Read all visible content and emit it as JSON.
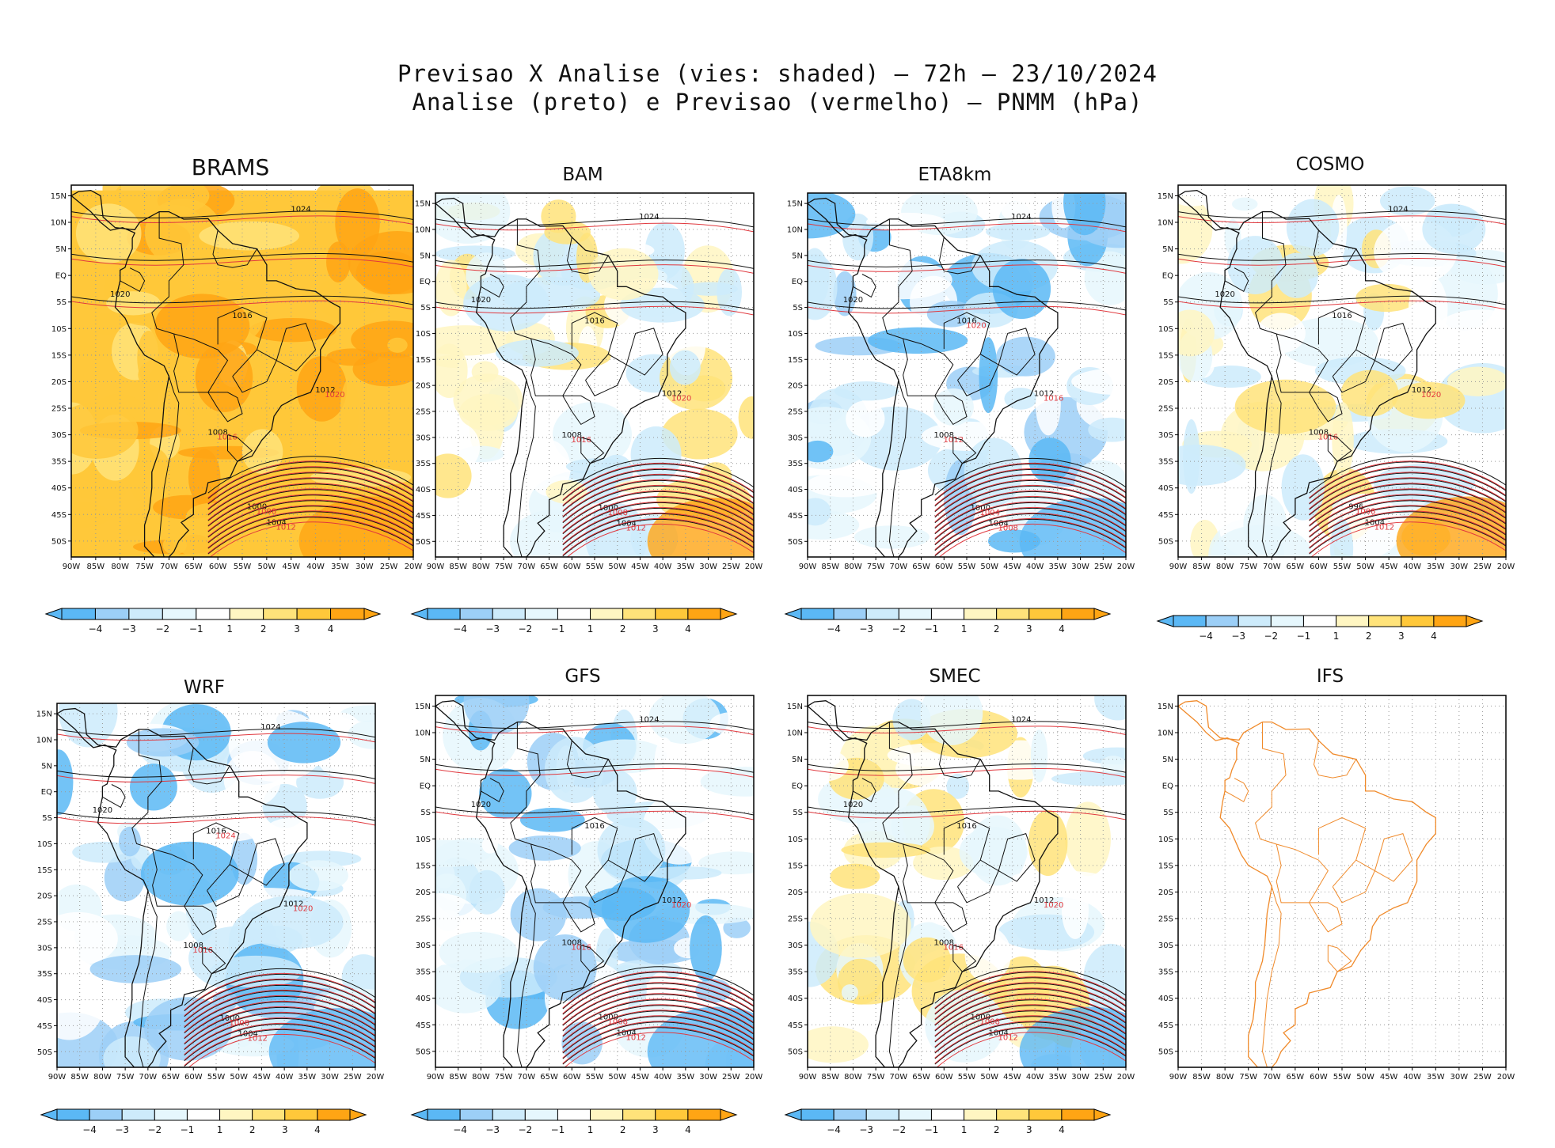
{
  "figure": {
    "title_line1": "Previsao X Analise (vies: shaded) – 72h – 23/10/2024",
    "title_line2": "Analise (preto) e Previsao (vermelho) – PNMM (hPa)"
  },
  "colors": {
    "neg4": "#5BB8F5",
    "neg3": "#9CCFF7",
    "neg2": "#CDEBFB",
    "neg1": "#E6F7FD",
    "zero": "#FFFFFF",
    "pos1": "#FFF6C2",
    "pos2": "#FFE37A",
    "pos3": "#FFC83A",
    "pos4": "#FFA514",
    "analysis": "#111111",
    "forecast": "#E0383E",
    "ifs_coast": "#F08A2A"
  },
  "axes": {
    "lat_ticks": [
      "15N",
      "10N",
      "5N",
      "EQ",
      "5S",
      "10S",
      "15S",
      "20S",
      "25S",
      "30S",
      "35S",
      "40S",
      "45S",
      "50S"
    ],
    "lon_ticks": [
      "90W",
      "85W",
      "80W",
      "75W",
      "70W",
      "65W",
      "60W",
      "55W",
      "50W",
      "45W",
      "40W",
      "35W",
      "30W",
      "25W",
      "20W"
    ]
  },
  "colorbar": {
    "labels": [
      "−4",
      "−3",
      "−2",
      "−1",
      "1",
      "2",
      "3",
      "4"
    ]
  },
  "chart_data": [
    {
      "type": "heatmap",
      "model": "BRAMS",
      "dominant_bias": "positive",
      "title": "BRAMS",
      "lon_range": [
        -90,
        -20
      ],
      "lat_range": [
        -53,
        17
      ],
      "analysis_contours": [
        "1000",
        "1004",
        "1008",
        "1012",
        "1016",
        "1020",
        "1024"
      ],
      "forecast_contours": [
        "1008",
        "1012",
        "1016",
        "1020"
      ],
      "colorbar_levels": [
        -4,
        -3,
        -2,
        -1,
        1,
        2,
        3,
        4
      ]
    },
    {
      "type": "heatmap",
      "model": "BAM",
      "dominant_bias": "mixed",
      "title": "BAM",
      "lon_range": [
        -90,
        -20
      ],
      "lat_range": [
        -53,
        17
      ],
      "analysis_contours": [
        "1000",
        "1004",
        "1008",
        "1012",
        "1016",
        "1020",
        "1024"
      ],
      "forecast_contours": [
        "1008",
        "1012",
        "1016",
        "1020"
      ],
      "colorbar_levels": [
        -4,
        -3,
        -2,
        -1,
        1,
        2,
        3,
        4
      ]
    },
    {
      "type": "heatmap",
      "model": "ETA8km",
      "dominant_bias": "negative",
      "title": "ETA8km",
      "lon_range": [
        -90,
        -20
      ],
      "lat_range": [
        -53,
        17
      ],
      "analysis_contours": [
        "1000",
        "1004",
        "1008",
        "1012",
        "1016",
        "1020",
        "1024"
      ],
      "forecast_contours": [
        "1004",
        "1008",
        "1012",
        "1016",
        "1020"
      ],
      "colorbar_levels": [
        -4,
        -3,
        -2,
        -1,
        1,
        2,
        3,
        4
      ]
    },
    {
      "type": "heatmap",
      "model": "COSMO",
      "dominant_bias": "mixed",
      "title": "COSMO",
      "lon_range": [
        -90,
        -20
      ],
      "lat_range": [
        -53,
        17
      ],
      "analysis_contours": [
        "996",
        "1004",
        "1008",
        "1012",
        "1016",
        "1020",
        "1024"
      ],
      "forecast_contours": [
        "1008",
        "1012",
        "1016",
        "1020"
      ],
      "colorbar_levels": [
        -4,
        -3,
        -2,
        -1,
        1,
        2,
        3,
        4
      ]
    },
    {
      "type": "heatmap",
      "model": "WRF",
      "dominant_bias": "negative",
      "title": "WRF",
      "lon_range": [
        -90,
        -20
      ],
      "lat_range": [
        -53,
        17
      ],
      "analysis_contours": [
        "1000",
        "1004",
        "1008",
        "1012",
        "1016",
        "1020",
        "1024"
      ],
      "forecast_contours": [
        "1008",
        "1012",
        "1016",
        "1020",
        "1024"
      ],
      "colorbar_levels": [
        -4,
        -3,
        -2,
        -1,
        1,
        2,
        3,
        4
      ]
    },
    {
      "type": "heatmap",
      "model": "GFS",
      "dominant_bias": "negative",
      "title": "GFS",
      "lon_range": [
        -90,
        -20
      ],
      "lat_range": [
        -53,
        17
      ],
      "analysis_contours": [
        "1000",
        "1004",
        "1008",
        "1012",
        "1016",
        "1020",
        "1024"
      ],
      "forecast_contours": [
        "1008",
        "1012",
        "1016",
        "1020"
      ],
      "colorbar_levels": [
        -4,
        -3,
        -2,
        -1,
        1,
        2,
        3,
        4
      ]
    },
    {
      "type": "heatmap",
      "model": "SMEC",
      "dominant_bias": "mixed",
      "title": "SMEC",
      "lon_range": [
        -90,
        -20
      ],
      "lat_range": [
        -53,
        17
      ],
      "analysis_contours": [
        "1000",
        "1004",
        "1008",
        "1012",
        "1016",
        "1020",
        "1024"
      ],
      "forecast_contours": [
        "1008",
        "1012",
        "1016",
        "1020"
      ],
      "colorbar_levels": [
        -4,
        -3,
        -2,
        -1,
        1,
        2,
        3,
        4
      ]
    },
    {
      "type": "heatmap",
      "model": "IFS",
      "dominant_bias": "none",
      "title": "IFS",
      "lon_range": [
        -90,
        -20
      ],
      "lat_range": [
        -53,
        17
      ],
      "analysis_contours": [],
      "forecast_contours": [],
      "colorbar_levels": []
    }
  ]
}
